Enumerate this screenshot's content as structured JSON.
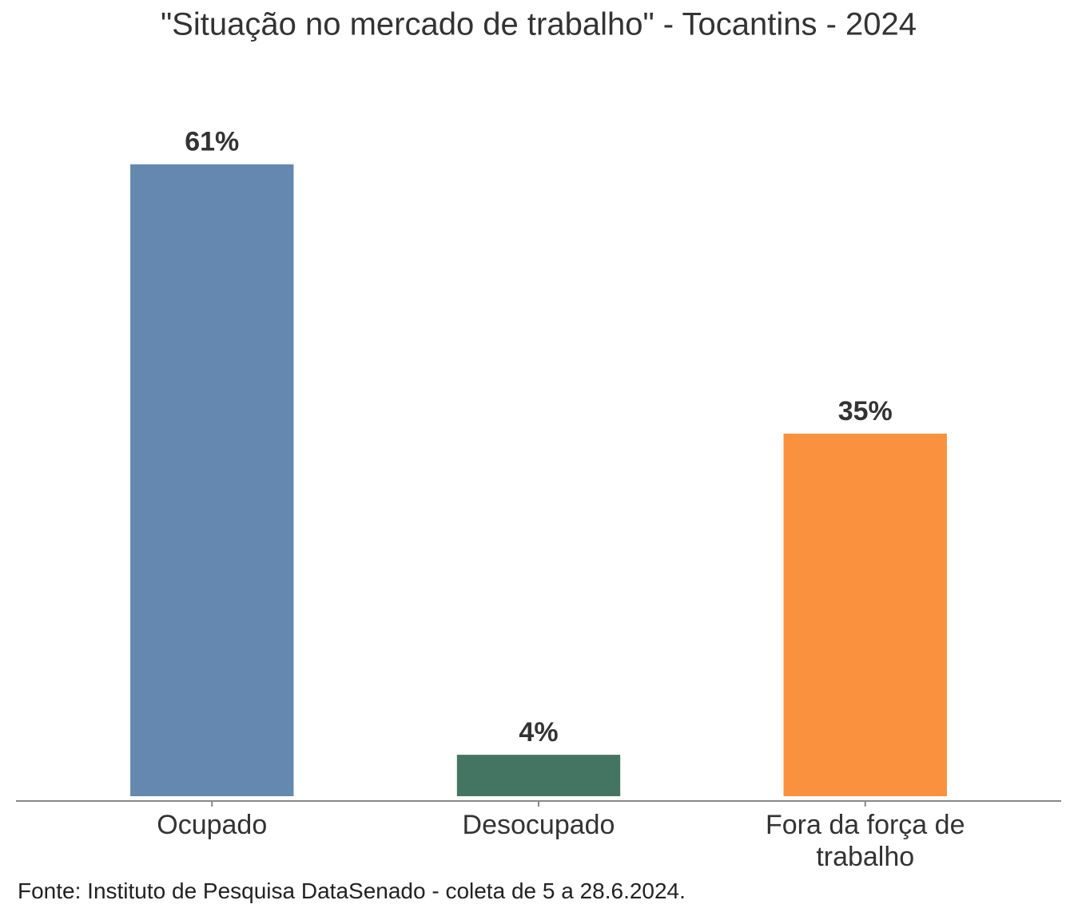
{
  "chart_data": {
    "type": "bar",
    "title": "\"Situação no mercado de trabalho\" - Tocantins - 2024",
    "categories": [
      "Ocupado",
      "Desocupado",
      "Fora da força de trabalho"
    ],
    "values": [
      61,
      4,
      35
    ],
    "value_labels": [
      "61%",
      "4%",
      "35%"
    ],
    "colors": [
      "#6488b0",
      "#447563",
      "#fa913e"
    ],
    "ylim": [
      0,
      70
    ],
    "note": "Fonte: Instituto de Pesquisa DataSenado - coleta de 5 a 28.6.2024."
  }
}
